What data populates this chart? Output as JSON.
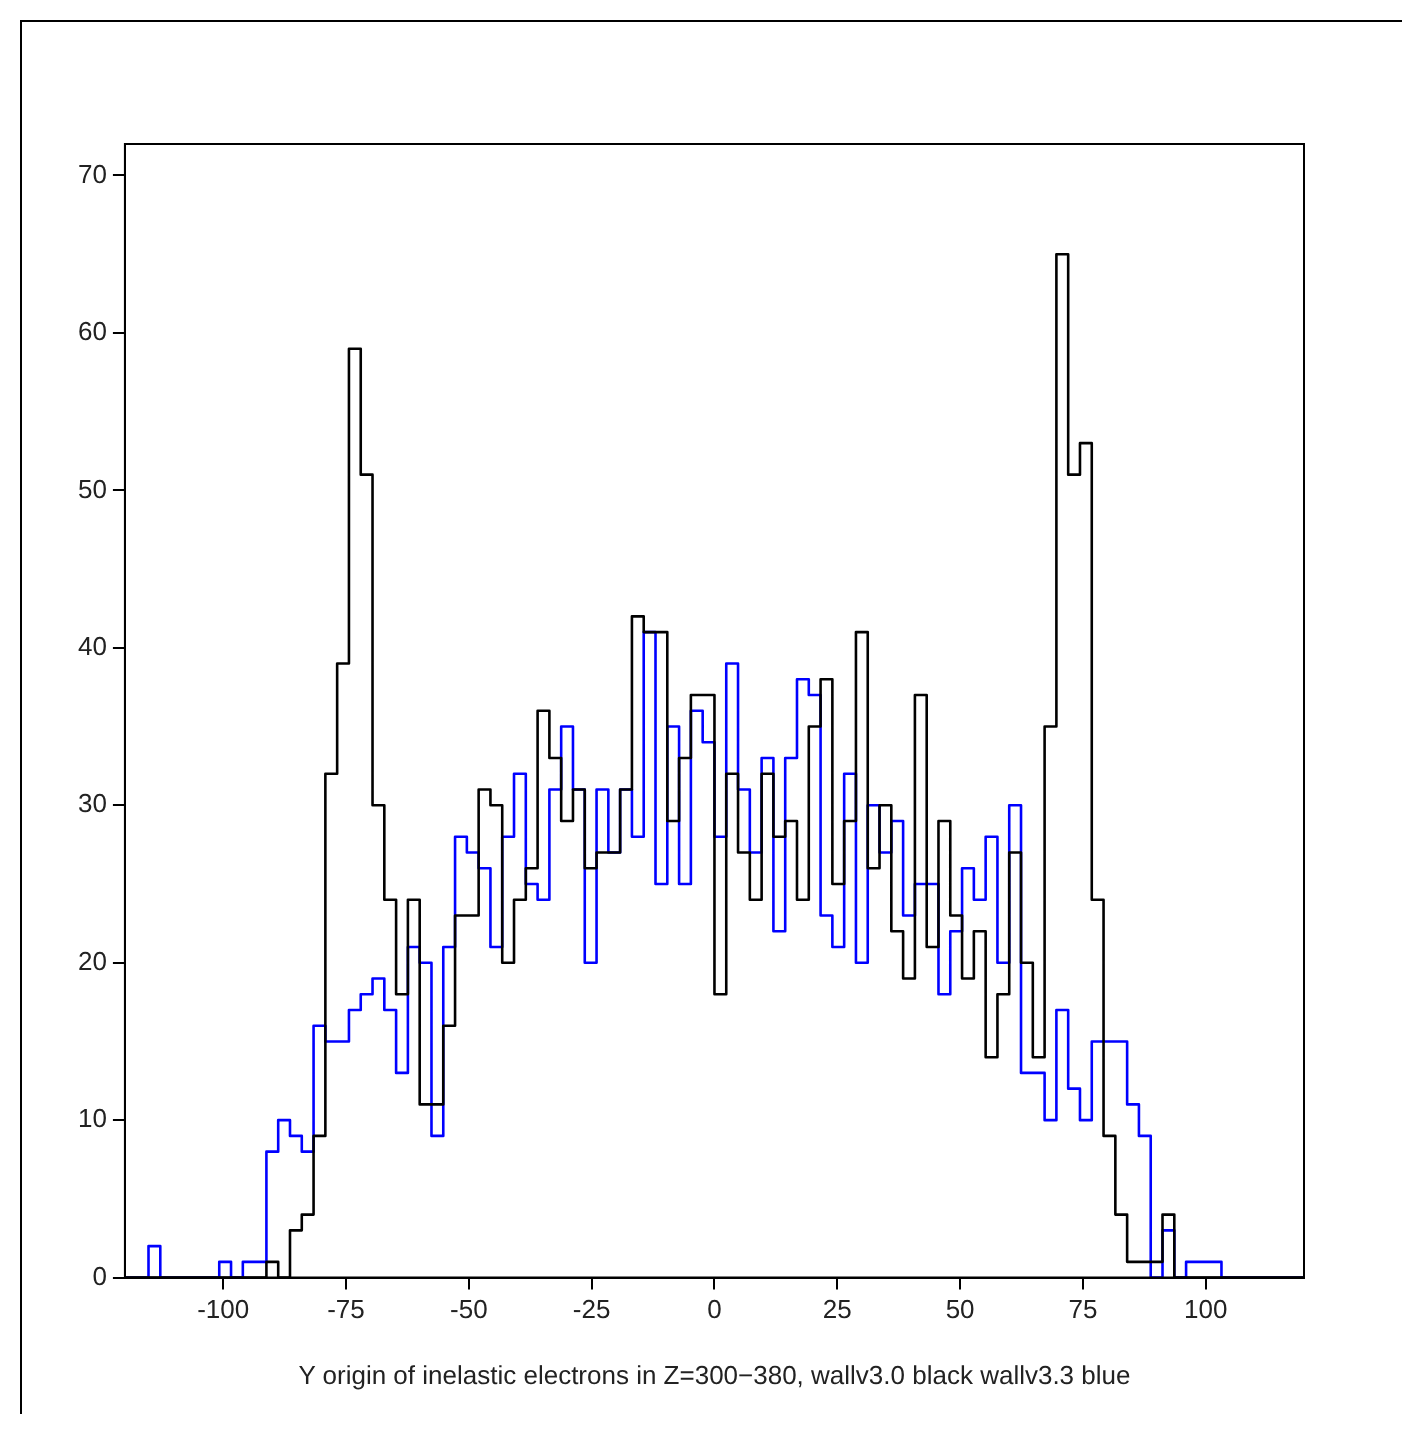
{
  "chart_data": {
    "type": "histogram",
    "xlabel": "Y origin of inelastic electrons in Z=300−380, wallv3.0 black wallv3.3 blue",
    "bins": [
      -120,
      -117.6,
      -115.2,
      -112.8,
      -110.4,
      -108,
      -105.6,
      -103.2,
      -100.8,
      -98.4,
      -96,
      -93.6,
      -91.2,
      -88.8,
      -86.4,
      -84,
      -81.6,
      -79.2,
      -76.8,
      -74.4,
      -72,
      -69.6,
      -67.2,
      -64.8,
      -62.4,
      -60,
      -57.6,
      -55.2,
      -52.8,
      -50.4,
      -48,
      -45.6,
      -43.2,
      -40.8,
      -38.4,
      -36,
      -33.6,
      -31.2,
      -28.8,
      -26.4,
      -24,
      -21.6,
      -19.2,
      -16.8,
      -14.4,
      -12,
      -9.6,
      -7.2,
      -4.8,
      -2.4,
      0,
      2.4,
      4.8,
      7.2,
      9.6,
      12,
      14.4,
      16.8,
      19.2,
      21.6,
      24,
      26.4,
      28.8,
      31.2,
      33.6,
      36,
      38.4,
      40.8,
      43.2,
      45.6,
      48,
      50.4,
      52.8,
      55.2,
      57.6,
      60,
      62.4,
      64.8,
      67.2,
      69.6,
      72,
      74.4,
      76.8,
      79.2,
      81.6,
      84,
      86.4,
      88.8,
      91.2,
      93.6,
      96,
      98.4,
      100.8,
      103.2,
      105.6,
      108,
      110.4,
      112.8,
      115.2,
      117.6,
      120
    ],
    "series": [
      {
        "color": "#000000",
        "values": [
          0,
          0,
          0,
          0,
          0,
          0,
          0,
          0,
          0,
          0,
          0,
          0,
          1,
          0,
          3,
          4,
          9,
          32,
          39,
          59,
          51,
          30,
          24,
          18,
          24,
          11,
          11,
          16,
          23,
          23,
          31,
          30,
          20,
          24,
          26,
          36,
          33,
          29,
          31,
          26,
          27,
          27,
          31,
          42,
          41,
          41,
          29,
          33,
          37,
          37,
          18,
          32,
          27,
          24,
          32,
          28,
          29,
          24,
          35,
          38,
          25,
          29,
          41,
          26,
          30,
          22,
          19,
          37,
          21,
          29,
          23,
          19,
          22,
          14,
          18,
          27,
          20,
          14,
          35,
          65,
          51,
          53,
          24,
          9,
          4,
          1,
          1,
          1,
          4,
          0,
          0,
          0,
          0,
          0,
          0,
          0,
          0,
          0,
          0,
          0
        ]
      },
      {
        "color": "#0000ff",
        "values": [
          0,
          0,
          2,
          0,
          0,
          0,
          0,
          0,
          1,
          0,
          1,
          1,
          8,
          10,
          9,
          8,
          16,
          15,
          15,
          17,
          18,
          19,
          17,
          13,
          21,
          20,
          9,
          21,
          28,
          27,
          26,
          21,
          28,
          32,
          25,
          24,
          31,
          35,
          31,
          20,
          31,
          27,
          31,
          28,
          41,
          25,
          35,
          25,
          36,
          34,
          28,
          39,
          31,
          27,
          33,
          22,
          33,
          38,
          37,
          23,
          21,
          32,
          20,
          30,
          27,
          29,
          23,
          25,
          25,
          18,
          22,
          26,
          24,
          28,
          20,
          30,
          13,
          13,
          10,
          17,
          12,
          10,
          15,
          15,
          15,
          11,
          9,
          0,
          3,
          0,
          1,
          1,
          1,
          0,
          0,
          0,
          0,
          0,
          0,
          0
        ]
      }
    ],
    "xlim": [
      -120,
      120
    ],
    "xticks": [
      -100,
      -75,
      -50,
      -25,
      0,
      25,
      50,
      75,
      100
    ],
    "ylim": [
      0,
      72
    ],
    "yticks": [
      0,
      10,
      20,
      30,
      40,
      50,
      60,
      70
    ],
    "grid": false,
    "legend": false
  }
}
